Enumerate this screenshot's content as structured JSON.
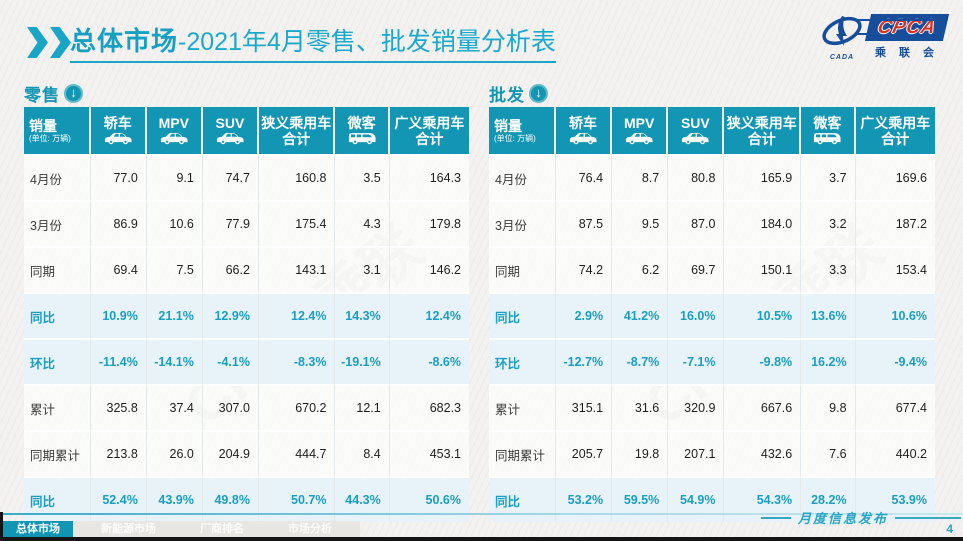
{
  "title": {
    "prefix": "总体市场",
    "rest": "-2021年4月零售、批发销量分析表"
  },
  "logo": {
    "name": "CPCA",
    "cada": "CADA",
    "org": "乘 联 会",
    "swirl_icon": "swirl-emblem-icon"
  },
  "watermark": "CPCA乘联",
  "colors": {
    "teal_header": "#1296b3",
    "title_teal": "#17a0c2",
    "highlight_row_bg": "#e7f3f8",
    "highlight_text": "#1a9ec1",
    "logo_blue": "#174e9b",
    "logo_red": "#d93025"
  },
  "sections": [
    {
      "label": "零售",
      "download_icon": "down-arrow-circle-icon",
      "unit_header": {
        "label": "销量",
        "sub": "(单位: 万辆)"
      },
      "columns": [
        {
          "label": "轿车",
          "icon": "car-icon"
        },
        {
          "label": "MPV",
          "icon": "car-icon"
        },
        {
          "label": "SUV",
          "icon": "car-icon"
        },
        {
          "label": "狭义乘用车",
          "label2": "合计"
        },
        {
          "label": "微客",
          "icon": "van-icon"
        },
        {
          "label": "广义乘用车",
          "label2": "合计"
        }
      ],
      "rows": [
        {
          "label": "4月份",
          "type": "normal",
          "values": [
            "77.0",
            "9.1",
            "74.7",
            "160.8",
            "3.5",
            "164.3"
          ]
        },
        {
          "label": "3月份",
          "type": "normal",
          "values": [
            "86.9",
            "10.6",
            "77.9",
            "175.4",
            "4.3",
            "179.8"
          ]
        },
        {
          "label": "同期",
          "type": "normal",
          "values": [
            "69.4",
            "7.5",
            "66.2",
            "143.1",
            "3.1",
            "146.2"
          ]
        },
        {
          "label": "同比",
          "type": "percent",
          "values": [
            "10.9%",
            "21.1%",
            "12.9%",
            "12.4%",
            "14.3%",
            "12.4%"
          ]
        },
        {
          "label": "环比",
          "type": "percent",
          "values": [
            "-11.4%",
            "-14.1%",
            "-4.1%",
            "-8.3%",
            "-19.1%",
            "-8.6%"
          ]
        },
        {
          "label": "累计",
          "type": "normal",
          "values": [
            "325.8",
            "37.4",
            "307.0",
            "670.2",
            "12.1",
            "682.3"
          ]
        },
        {
          "label": "同期累计",
          "type": "normal",
          "values": [
            "213.8",
            "26.0",
            "204.9",
            "444.7",
            "8.4",
            "453.1"
          ]
        },
        {
          "label": "同比",
          "type": "percent",
          "values": [
            "52.4%",
            "43.9%",
            "49.8%",
            "50.7%",
            "44.3%",
            "50.6%"
          ]
        }
      ]
    },
    {
      "label": "批发",
      "download_icon": "down-arrow-circle-icon",
      "unit_header": {
        "label": "销量",
        "sub": "(单位: 万辆)"
      },
      "columns": [
        {
          "label": "轿车",
          "icon": "car-icon"
        },
        {
          "label": "MPV",
          "icon": "car-icon"
        },
        {
          "label": "SUV",
          "icon": "car-icon"
        },
        {
          "label": "狭义乘用车",
          "label2": "合计"
        },
        {
          "label": "微客",
          "icon": "van-icon"
        },
        {
          "label": "广义乘用车",
          "label2": "合计"
        }
      ],
      "rows": [
        {
          "label": "4月份",
          "type": "normal",
          "values": [
            "76.4",
            "8.7",
            "80.8",
            "165.9",
            "3.7",
            "169.6"
          ]
        },
        {
          "label": "3月份",
          "type": "normal",
          "values": [
            "87.5",
            "9.5",
            "87.0",
            "184.0",
            "3.2",
            "187.2"
          ]
        },
        {
          "label": "同期",
          "type": "normal",
          "values": [
            "74.2",
            "6.2",
            "69.7",
            "150.1",
            "3.3",
            "153.4"
          ]
        },
        {
          "label": "同比",
          "type": "percent",
          "values": [
            "2.9%",
            "41.2%",
            "16.0%",
            "10.5%",
            "13.6%",
            "10.6%"
          ]
        },
        {
          "label": "环比",
          "type": "percent",
          "values": [
            "-12.7%",
            "-8.7%",
            "-7.1%",
            "-9.8%",
            "16.2%",
            "-9.4%"
          ]
        },
        {
          "label": "累计",
          "type": "normal",
          "values": [
            "315.1",
            "31.6",
            "320.9",
            "667.6",
            "9.8",
            "677.4"
          ]
        },
        {
          "label": "同期累计",
          "type": "normal",
          "values": [
            "205.7",
            "19.8",
            "207.1",
            "432.6",
            "7.6",
            "440.2"
          ]
        },
        {
          "label": "同比",
          "type": "percent",
          "values": [
            "53.2%",
            "59.5%",
            "54.9%",
            "54.3%",
            "28.2%",
            "53.9%"
          ]
        }
      ]
    }
  ],
  "footer": {
    "tabs": [
      {
        "label": "总体市场",
        "active": true
      },
      {
        "label": "新能源市场",
        "active": false
      },
      {
        "label": "厂商排名",
        "active": false
      },
      {
        "label": "市场分析",
        "active": false
      }
    ],
    "publication": "月度信息发布",
    "page": "4"
  }
}
